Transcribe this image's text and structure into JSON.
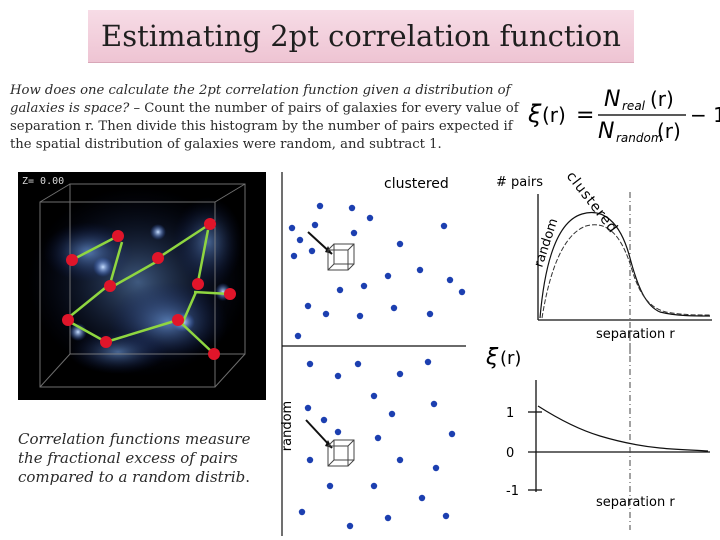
{
  "title": "Estimating 2pt correlation function",
  "intro": {
    "question": "How does one calculate the 2pt correlation function given a distribution of galaxies is space?",
    "answer_1": " – Count the number of pairs of galaxies for every value of separation r.",
    "answer_2": " Then divide this histogram by the number of pairs expected if the spatial distribution of galaxies were random, and subtract 1."
  },
  "formula": {
    "xi": "ξ",
    "lhs_arg": "(r)",
    "equals": "=",
    "numerator": "N",
    "numerator_sub": "real",
    "numerator_arg": "(r)",
    "denominator": "N",
    "denominator_sub": "random",
    "denominator_arg": "(r)",
    "minus_one": "− 1"
  },
  "simulation": {
    "label": "Z= 0.00"
  },
  "caption": {
    "text": "Correlation functions measure the fractional excess of pairs compared to a random distrib",
    "end": "."
  },
  "panels": {
    "clustered_label": "clustered",
    "random_label": "random"
  },
  "pairs_plot": {
    "ylabel": "# pairs",
    "curve_clustered": "clustered",
    "curve_random": "random",
    "xlabel": "separation r"
  },
  "xi_plot": {
    "ylabel_symbol": "ξ",
    "ylabel_arg": "(r)",
    "ticks": [
      "1",
      "0",
      "-1"
    ],
    "xlabel": "separation r"
  },
  "colors": {
    "accent_red": "#e0152a",
    "galaxy_blue": "#1c3fb0",
    "arrow_green": "#8fd640",
    "title_bg": "#f2cfdc"
  }
}
